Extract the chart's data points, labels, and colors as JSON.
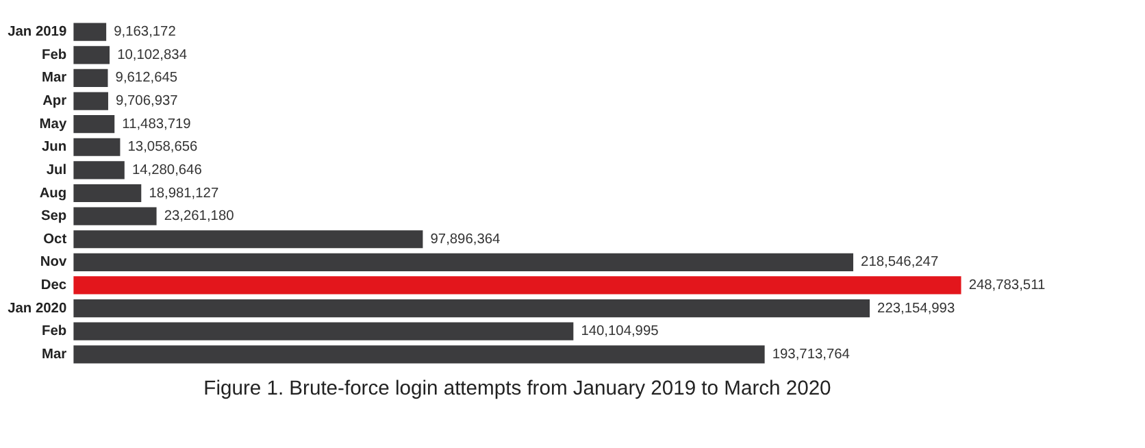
{
  "chart_data": {
    "type": "bar",
    "orientation": "horizontal",
    "title": "Figure 1. Brute-force login attempts from January 2019 to March 2020",
    "categories": [
      "Jan 2019",
      "Feb",
      "Mar",
      "Apr",
      "May",
      "Jun",
      "Jul",
      "Aug",
      "Sep",
      "Oct",
      "Nov",
      "Dec",
      "Jan 2020",
      "Feb",
      "Mar"
    ],
    "values": [
      9163172,
      10102834,
      9612645,
      9706937,
      11483719,
      13058656,
      14280646,
      18981127,
      23261180,
      97896364,
      218546247,
      248783511,
      223154993,
      140104995,
      193713764
    ],
    "colors": [
      "#3c3c3e",
      "#3c3c3e",
      "#3c3c3e",
      "#3c3c3e",
      "#3c3c3e",
      "#3c3c3e",
      "#3c3c3e",
      "#3c3c3e",
      "#3c3c3e",
      "#3c3c3e",
      "#3c3c3e",
      "#e3161c",
      "#3c3c3e",
      "#3c3c3e",
      "#3c3c3e"
    ],
    "value_labels": [
      "9,163,172",
      "10,102,834",
      "9,612,645",
      "9,706,937",
      "11,483,719",
      "13,058,656",
      "14,280,646",
      "18,981,127",
      "23,261,180",
      "97,896,364",
      "218,546,247",
      "248,783,511",
      "223,154,993",
      "140,104,995",
      "193,713,764"
    ],
    "grid": false
  }
}
